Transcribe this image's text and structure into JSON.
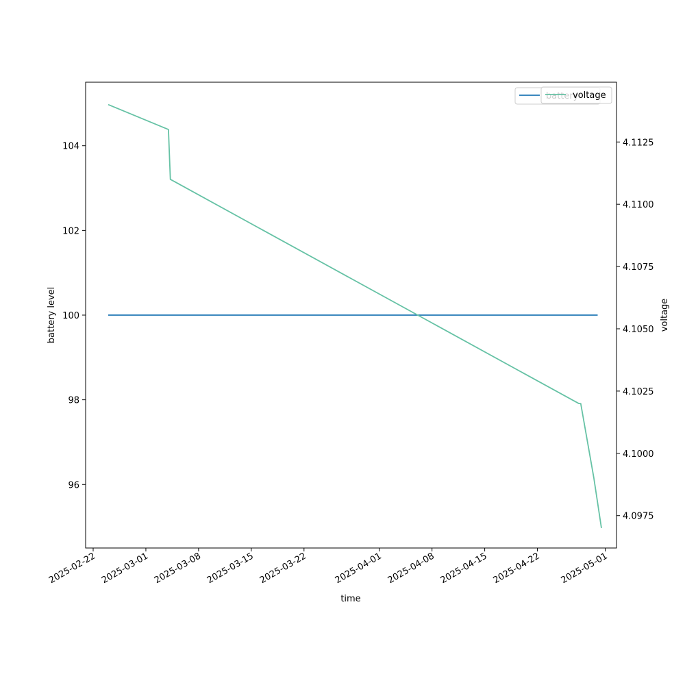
{
  "chart_data": {
    "type": "line",
    "xlabel": "time",
    "ylabel_left": "battery level",
    "ylabel_right": "voltage",
    "x_ticks": [
      "2025-02-22",
      "2025-03-01",
      "2025-03-08",
      "2025-03-15",
      "2025-03-22",
      "2025-04-01",
      "2025-04-08",
      "2025-04-15",
      "2025-04-22",
      "2025-05-01"
    ],
    "x_range": [
      "2025-02-21T00:00",
      "2025-05-02T12:00"
    ],
    "y_left_ticks": [
      "96",
      "98",
      "100",
      "102",
      "104"
    ],
    "y_left_range": [
      94.5,
      105.5
    ],
    "y_right_ticks": [
      "4.0975",
      "4.1000",
      "4.1025",
      "4.1050",
      "4.1075",
      "4.1100",
      "4.1125"
    ],
    "y_right_range": [
      4.0962,
      4.1149
    ],
    "grid": false,
    "legend_placement": "top-right",
    "series": [
      {
        "name": "battery",
        "axis": "left",
        "color": "#1f77b4",
        "points": [
          [
            "2025-02-24",
            100
          ],
          [
            "2025-04-30",
            100
          ]
        ]
      },
      {
        "name": "voltage",
        "axis": "right",
        "color": "#66c2a5",
        "points": [
          [
            "2025-02-24",
            4.114
          ],
          [
            "2025-03-04",
            4.113
          ],
          [
            "2025-03-04T06:00",
            4.111
          ],
          [
            "2025-04-27T12:00",
            4.102
          ],
          [
            "2025-04-27T18:00",
            4.102
          ],
          [
            "2025-04-29T12:00",
            4.099
          ],
          [
            "2025-04-30",
            4.098
          ],
          [
            "2025-04-30T12:00",
            4.097
          ]
        ]
      }
    ]
  }
}
